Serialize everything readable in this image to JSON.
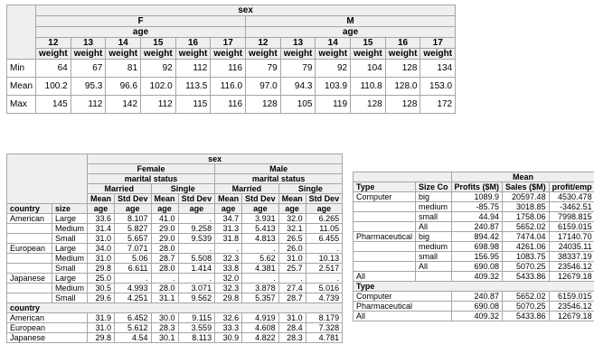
{
  "weight_table": {
    "sex_label": "sex",
    "sex_groups": [
      "F",
      "M"
    ],
    "age_label": "age",
    "ages": [
      "12",
      "13",
      "14",
      "15",
      "16",
      "17"
    ],
    "measure_label": "weight",
    "rows": [
      {
        "label": "Min",
        "values": [
          "64",
          "67",
          "81",
          "92",
          "112",
          "116",
          "79",
          "79",
          "92",
          "104",
          "128",
          "134"
        ]
      },
      {
        "label": "Mean",
        "values": [
          "100.2",
          "95.3",
          "96.6",
          "102.0",
          "113.5",
          "116.0",
          "97.0",
          "94.3",
          "103.9",
          "110.8",
          "128.0",
          "153.0"
        ]
      },
      {
        "label": "Max",
        "values": [
          "145",
          "112",
          "142",
          "112",
          "115",
          "116",
          "128",
          "105",
          "119",
          "128",
          "128",
          "172"
        ]
      }
    ]
  },
  "age_table": {
    "sex_label": "sex",
    "sex_groups": [
      "Female",
      "Male"
    ],
    "marital_label": "marital status",
    "marital_groups": [
      "Married",
      "Single"
    ],
    "stat_labels": [
      "Mean",
      "Std Dev"
    ],
    "age_label": "age",
    "country_label": "country",
    "size_label": "size",
    "rows": [
      {
        "country": "American",
        "size": "Large",
        "values": [
          "33.6",
          "8.107",
          "41.0",
          ".",
          "34.7",
          "3.931",
          "32.0",
          "6.265"
        ]
      },
      {
        "country": "",
        "size": "Medium",
        "values": [
          "31.4",
          "5.827",
          "29.0",
          "9.258",
          "31.3",
          "5.413",
          "32.1",
          "11.05"
        ]
      },
      {
        "country": "",
        "size": "Small",
        "values": [
          "31.0",
          "5.657",
          "29.0",
          "9.539",
          "31.8",
          "4.813",
          "26.5",
          "6.455"
        ]
      },
      {
        "country": "European",
        "size": "Large",
        "values": [
          "34.0",
          "7.071",
          "28.0",
          ".",
          ".",
          ".",
          "26.0",
          "."
        ]
      },
      {
        "country": "",
        "size": "Medium",
        "values": [
          "31.0",
          "5.06",
          "28.7",
          "5.508",
          "32.3",
          "5.62",
          "31.0",
          "10.13"
        ]
      },
      {
        "country": "",
        "size": "Small",
        "values": [
          "29.8",
          "6.611",
          "28.0",
          "1.414",
          "33.8",
          "4.381",
          "25.7",
          "2.517"
        ]
      },
      {
        "country": "Japanese",
        "size": "Large",
        "values": [
          "25.0",
          ".",
          ".",
          ".",
          "32.0",
          ".",
          ".",
          "."
        ]
      },
      {
        "country": "",
        "size": "Medium",
        "values": [
          "30.5",
          "4.993",
          "28.0",
          "3.071",
          "32.3",
          "3.878",
          "27.4",
          "5.016"
        ]
      },
      {
        "country": "",
        "size": "Small",
        "values": [
          "29.6",
          "4.251",
          "31.1",
          "9.562",
          "29.8",
          "5.357",
          "28.7",
          "4.739"
        ]
      }
    ],
    "section2_label": "country",
    "section2_rows": [
      {
        "label": "American",
        "values": [
          "31.9",
          "6.452",
          "30.0",
          "9.115",
          "32.6",
          "4.919",
          "31.0",
          "8.179"
        ]
      },
      {
        "label": "European",
        "values": [
          "31.0",
          "5.612",
          "28.3",
          "3.559",
          "33.3",
          "4.608",
          "28.4",
          "7.328"
        ]
      },
      {
        "label": "Japanese",
        "values": [
          "29.8",
          "4.54",
          "30.1",
          "8.113",
          "30.9",
          "4.822",
          "28.3",
          "4.781"
        ]
      }
    ]
  },
  "finance_table": {
    "mean_label": "Mean",
    "type_label": "Type",
    "sizeco_label": "Size Co",
    "columns": [
      "Profits ($M)",
      "Sales ($M)",
      "profit/emp"
    ],
    "rows": [
      {
        "type": "Computer",
        "size": "big",
        "values": [
          "1089.9",
          "20597.48",
          "4530.478"
        ]
      },
      {
        "type": "",
        "size": "medium",
        "values": [
          "-85.75",
          "3018.85",
          "-3462.51"
        ]
      },
      {
        "type": "",
        "size": "small",
        "values": [
          "44.94",
          "1758.06",
          "7998.815"
        ]
      },
      {
        "type": "",
        "size": "All",
        "values": [
          "240.87",
          "5652.02",
          "6159.015"
        ]
      },
      {
        "type": "Pharmaceutical",
        "size": "big",
        "values": [
          "894.42",
          "7474.04",
          "17140.70"
        ]
      },
      {
        "type": "",
        "size": "medium",
        "values": [
          "698.98",
          "4261.06",
          "24035.11"
        ]
      },
      {
        "type": "",
        "size": "small",
        "values": [
          "156.95",
          "1083.75",
          "38337.19"
        ]
      },
      {
        "type": "",
        "size": "All",
        "values": [
          "690.08",
          "5070.25",
          "23546.12"
        ]
      },
      {
        "type": "All",
        "size": "",
        "values": [
          "409.32",
          "5433.86",
          "12679.18"
        ]
      }
    ],
    "section2_label": "Type",
    "section2_rows": [
      {
        "label": "Computer",
        "values": [
          "240.87",
          "5652.02",
          "6159.015"
        ]
      },
      {
        "label": "Pharmaceutical",
        "values": [
          "690.08",
          "5070.25",
          "23546.12"
        ]
      },
      {
        "label": "All",
        "values": [
          "409.32",
          "5433.86",
          "12679.18"
        ]
      }
    ]
  }
}
